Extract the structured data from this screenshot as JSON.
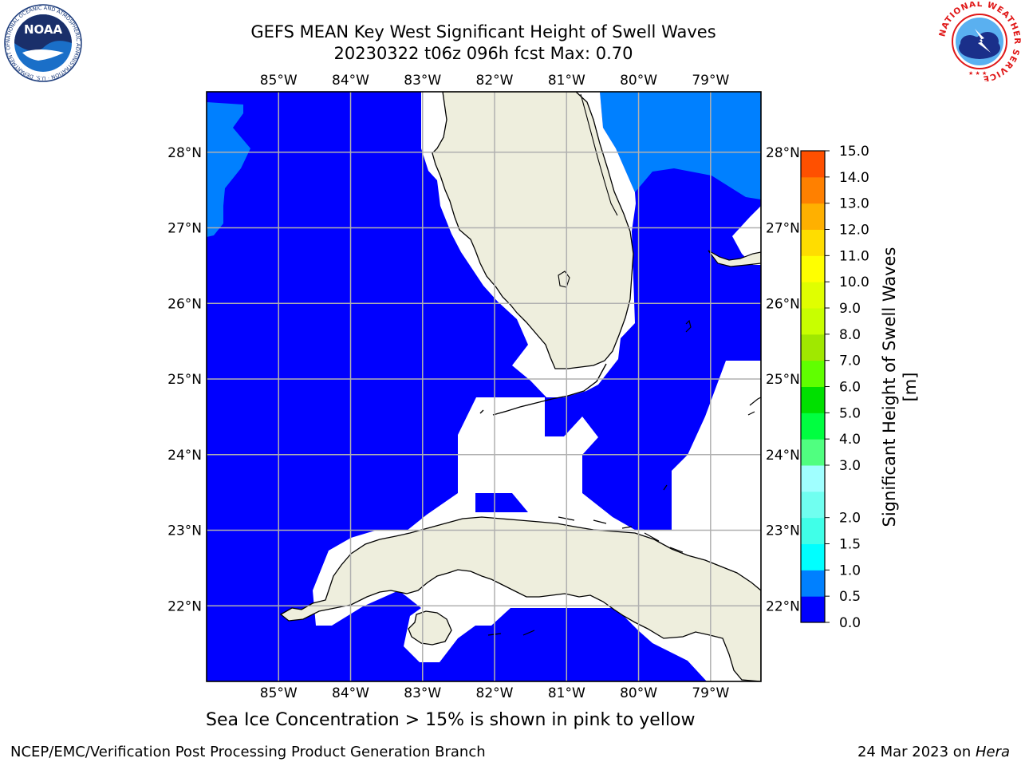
{
  "title": {
    "line1": "GEFS MEAN Key West Significant Height of Swell Waves",
    "line2": "20230322 t06z 096h fcst   Max: 0.70"
  },
  "map": {
    "lon_range": [
      -86.0,
      -78.3
    ],
    "lat_range": [
      21.0,
      28.8
    ],
    "lon_ticks": [
      "85°W",
      "84°W",
      "83°W",
      "82°W",
      "81°W",
      "80°W",
      "79°W"
    ],
    "lat_ticks": [
      "22°N",
      "23°N",
      "24°N",
      "25°N",
      "26°N",
      "27°N",
      "28°N"
    ],
    "grid": true,
    "colors": {
      "sea_low": "#0000ff",
      "sea_mid": "#0080ff",
      "land": "#eeeedd",
      "masked": "#ffffff",
      "gridline": "#b0b0b0"
    }
  },
  "colorbar": {
    "title": "Significant Height of Swell Waves [m]",
    "levels": [
      "0.0",
      "0.5",
      "1.0",
      "1.5",
      "2.0",
      "2.5",
      "3.0",
      "4.0",
      "5.0",
      "6.0",
      "7.0",
      "8.0",
      "9.0",
      "10.0",
      "11.0",
      "12.0",
      "13.0",
      "14.0",
      "15.0"
    ],
    "tick_labels": [
      "0.0",
      "0.5",
      "1.0",
      "1.5",
      "2.0",
      "3.0",
      "4.0",
      "5.0",
      "6.0",
      "7.0",
      "8.0",
      "9.0",
      "10.0",
      "11.0",
      "12.0",
      "13.0",
      "14.0",
      "15.0"
    ],
    "colors": [
      "#0000ff",
      "#0080ff",
      "#00ffff",
      "#40ffe8",
      "#70fff0",
      "#a0ffff",
      "#50ff80",
      "#00ff40",
      "#00e000",
      "#60ff00",
      "#a0e800",
      "#c8ff00",
      "#e0ff00",
      "#ffff00",
      "#ffdd00",
      "#ffb000",
      "#ff8000",
      "#ff5000",
      "#ff2000",
      "#ff0000"
    ]
  },
  "footer": {
    "note": "Sea Ice Concentration > 15% is shown in pink to yellow",
    "credit": "NCEP/EMC/Verification Post Processing Product Generation Branch",
    "date": "24 Mar 2023 on ",
    "host": "Hera"
  },
  "logos": {
    "noaa_text": "NOAA",
    "noaa_ring": "NATIONAL OCEANIC AND ATMOSPHERIC ADMINISTRATION · U.S. DEPARTMENT OF COMMERCE",
    "nws_ring": "NATIONAL WEATHER SERVICE"
  }
}
